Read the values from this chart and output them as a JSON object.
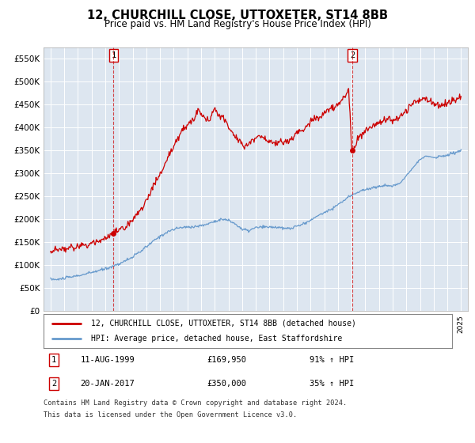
{
  "title": "12, CHURCHILL CLOSE, UTTOXETER, ST14 8BB",
  "subtitle": "Price paid vs. HM Land Registry's House Price Index (HPI)",
  "yticks": [
    0,
    50000,
    100000,
    150000,
    200000,
    250000,
    300000,
    350000,
    400000,
    450000,
    500000,
    550000
  ],
  "ytick_labels": [
    "£0",
    "£50K",
    "£100K",
    "£150K",
    "£200K",
    "£250K",
    "£300K",
    "£350K",
    "£400K",
    "£450K",
    "£500K",
    "£550K"
  ],
  "sale1_date": "11-AUG-1999",
  "sale1_price": 169950,
  "sale1_label": "1",
  "sale1_pct": "91% ↑ HPI",
  "sale2_date": "20-JAN-2017",
  "sale2_price": 350000,
  "sale2_label": "2",
  "sale2_pct": "35% ↑ HPI",
  "line1_color": "#cc0000",
  "line2_color": "#6699cc",
  "bg_color": "#dde6f0",
  "legend1_label": "12, CHURCHILL CLOSE, UTTOXETER, ST14 8BB (detached house)",
  "legend2_label": "HPI: Average price, detached house, East Staffordshire",
  "footer": "Contains HM Land Registry data © Crown copyright and database right 2024.\nThis data is licensed under the Open Government Licence v3.0.",
  "sale1_x": 1999.6,
  "sale2_x": 2017.05,
  "xmin": 1994.5,
  "xmax": 2025.5,
  "ymin": 0,
  "ymax": 575000
}
